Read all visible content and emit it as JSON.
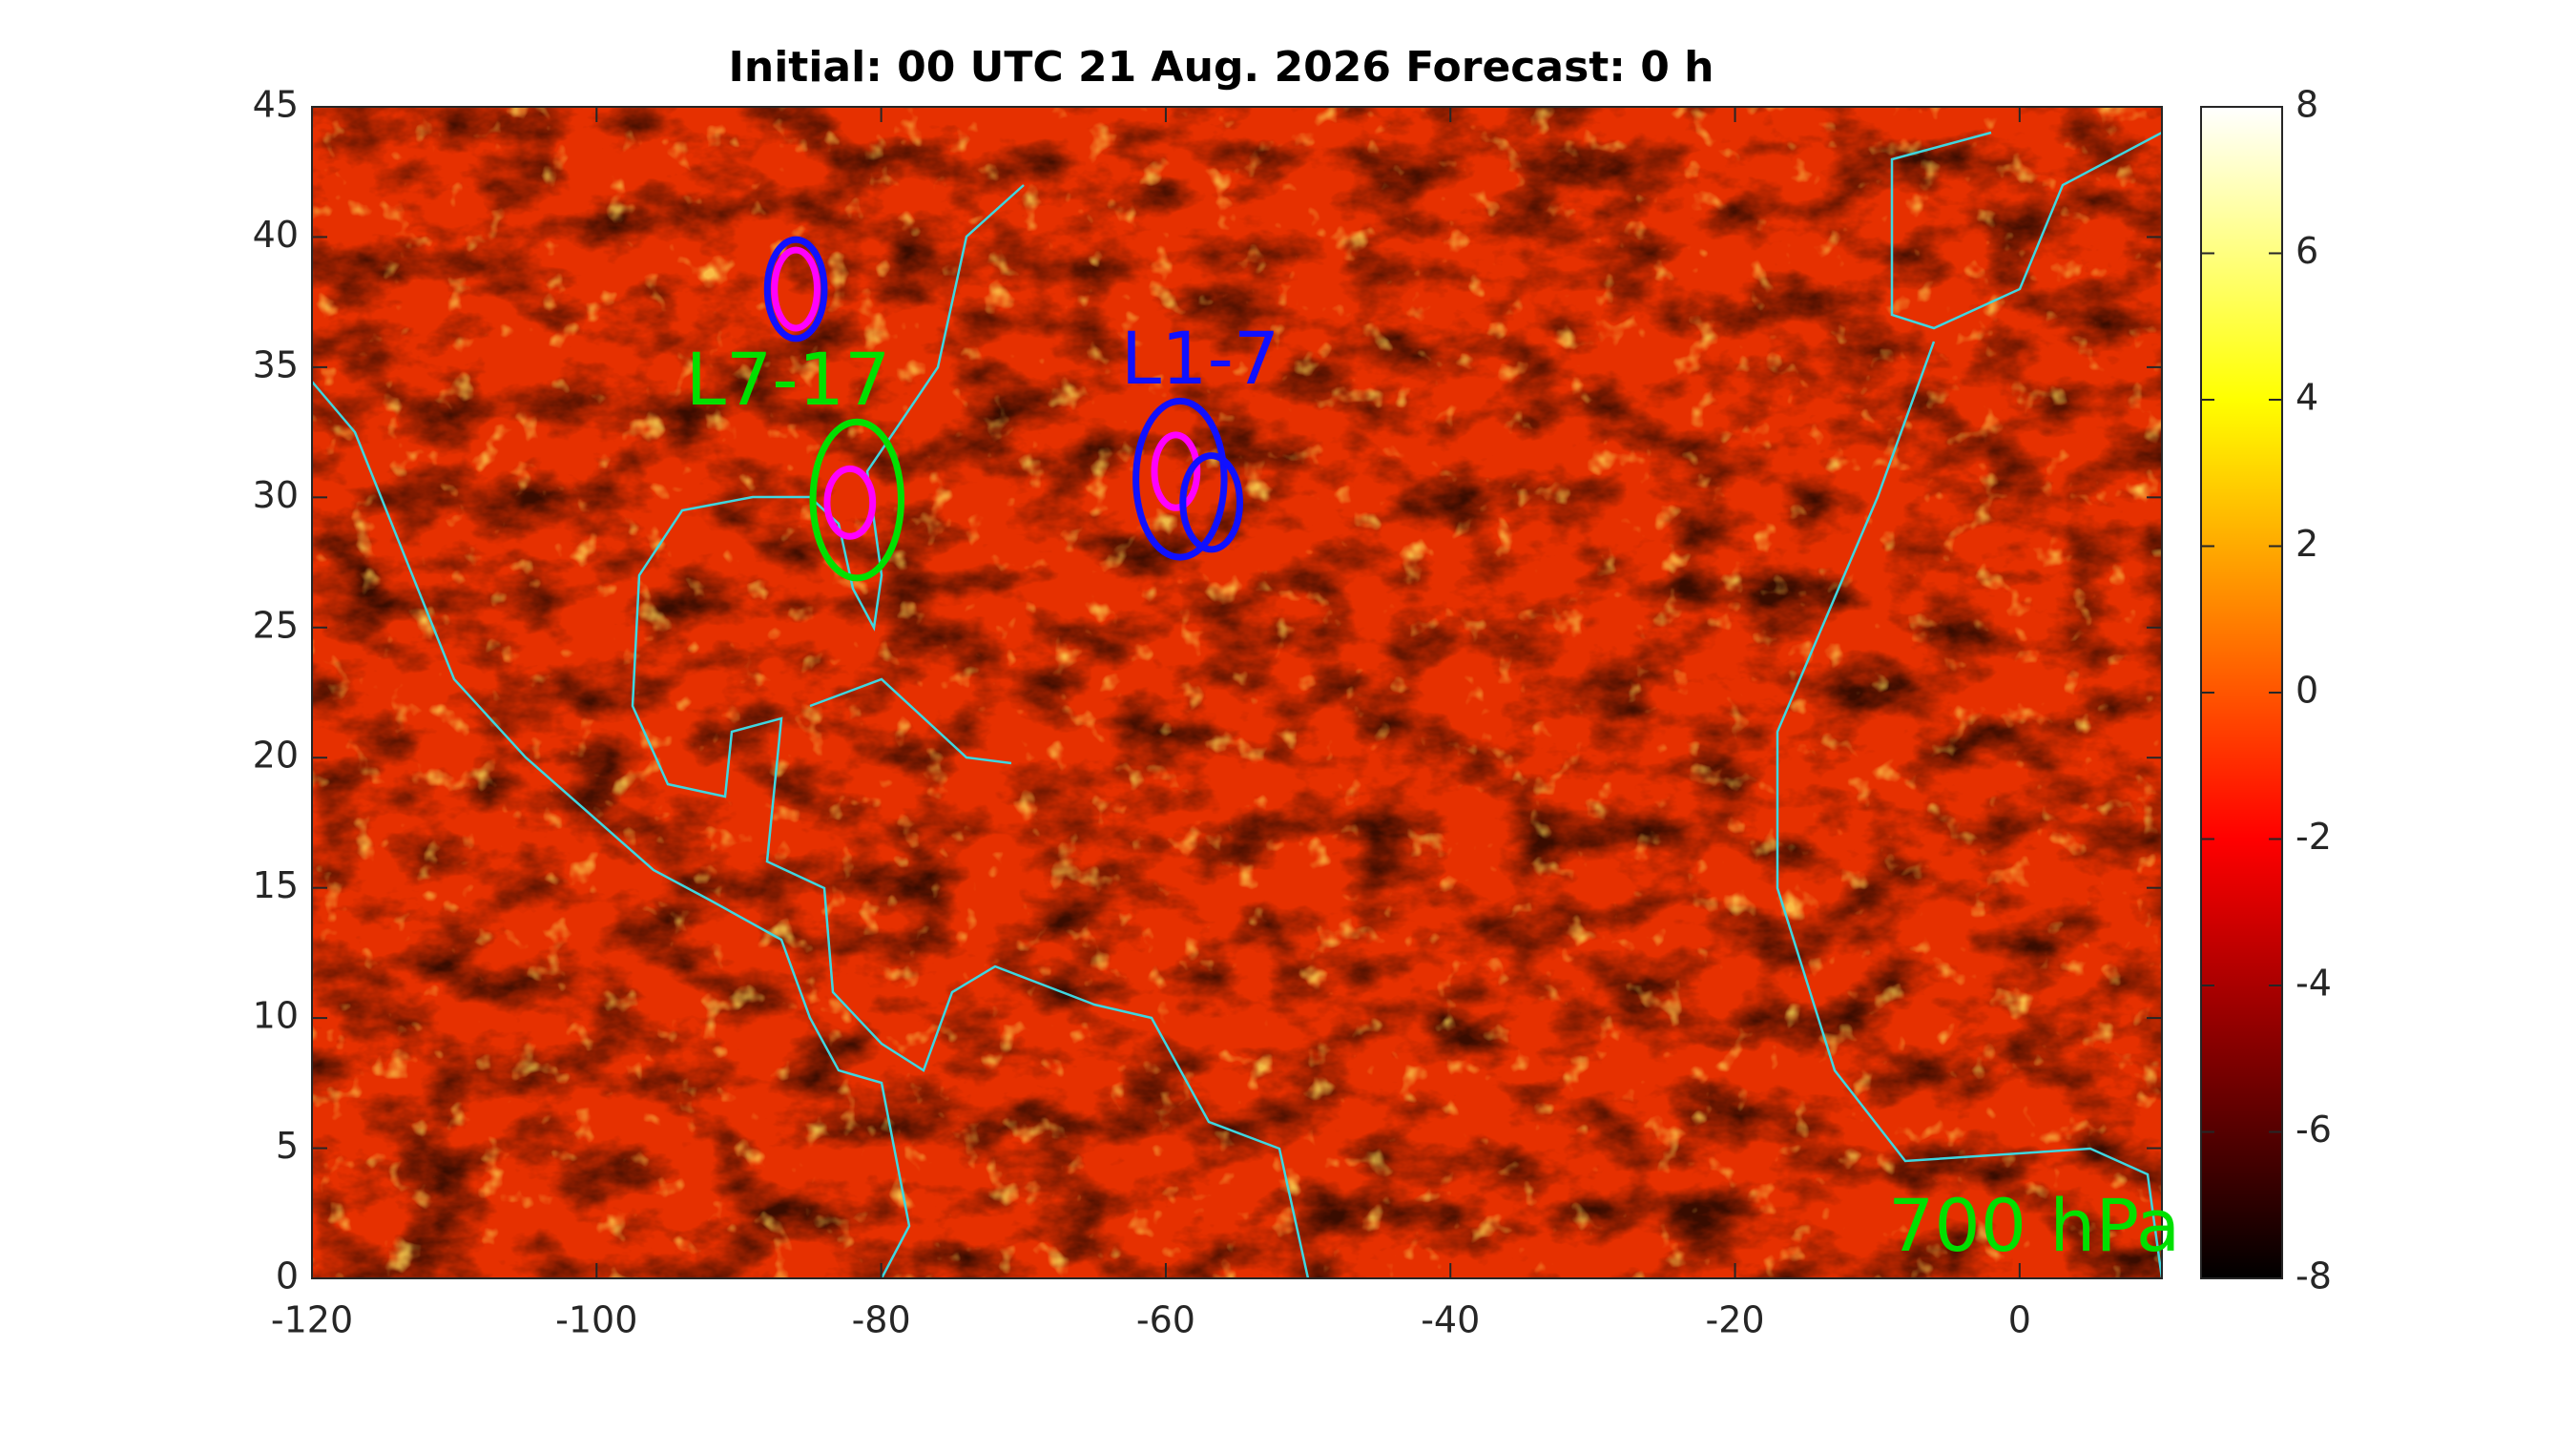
{
  "chart_data": {
    "type": "heatmap",
    "title": "Initial: 00 UTC 21 Aug. 2026 Forecast: 0 h",
    "xlim": [
      -120,
      10
    ],
    "ylim": [
      0,
      45
    ],
    "xticks": [
      -120,
      -100,
      -80,
      -60,
      -40,
      -20,
      0
    ],
    "yticks": [
      0,
      5,
      10,
      15,
      20,
      25,
      30,
      35,
      40,
      45
    ],
    "colorbar": {
      "colormap": "hot",
      "clim": [
        -8,
        8
      ],
      "ticks": [
        -8,
        -6,
        -4,
        -2,
        0,
        2,
        4,
        6,
        8
      ]
    },
    "ellipses": [
      {
        "center": [
          -86,
          38
        ],
        "radii": [
          2,
          1.9
        ],
        "color": "#1010ff"
      },
      {
        "center": [
          -86,
          38
        ],
        "radii": [
          1.5,
          1.5
        ],
        "color": "#ff00ff"
      },
      {
        "center": [
          -81.7,
          29.9
        ],
        "radii": [
          3.1,
          3.0
        ],
        "color": "#00e000"
      },
      {
        "center": [
          -82.2,
          29.8
        ],
        "radii": [
          1.6,
          1.3
        ],
        "color": "#ff00ff"
      },
      {
        "center": [
          -59,
          30.7
        ],
        "radii": [
          3.1,
          3.0
        ],
        "color": "#1010ff"
      },
      {
        "center": [
          -59.3,
          31
        ],
        "radii": [
          1.5,
          1.4
        ],
        "color": "#ff00ff"
      },
      {
        "center": [
          -56.8,
          29.8
        ],
        "radii": [
          2,
          1.8
        ],
        "color": "#1010ff"
      }
    ],
    "annotations": [
      {
        "text": "L7-17",
        "color": "#00e000"
      },
      {
        "text": "L1-7",
        "color": "#1010ff"
      },
      {
        "text": "700 hPa",
        "color": "#00e000"
      }
    ]
  }
}
